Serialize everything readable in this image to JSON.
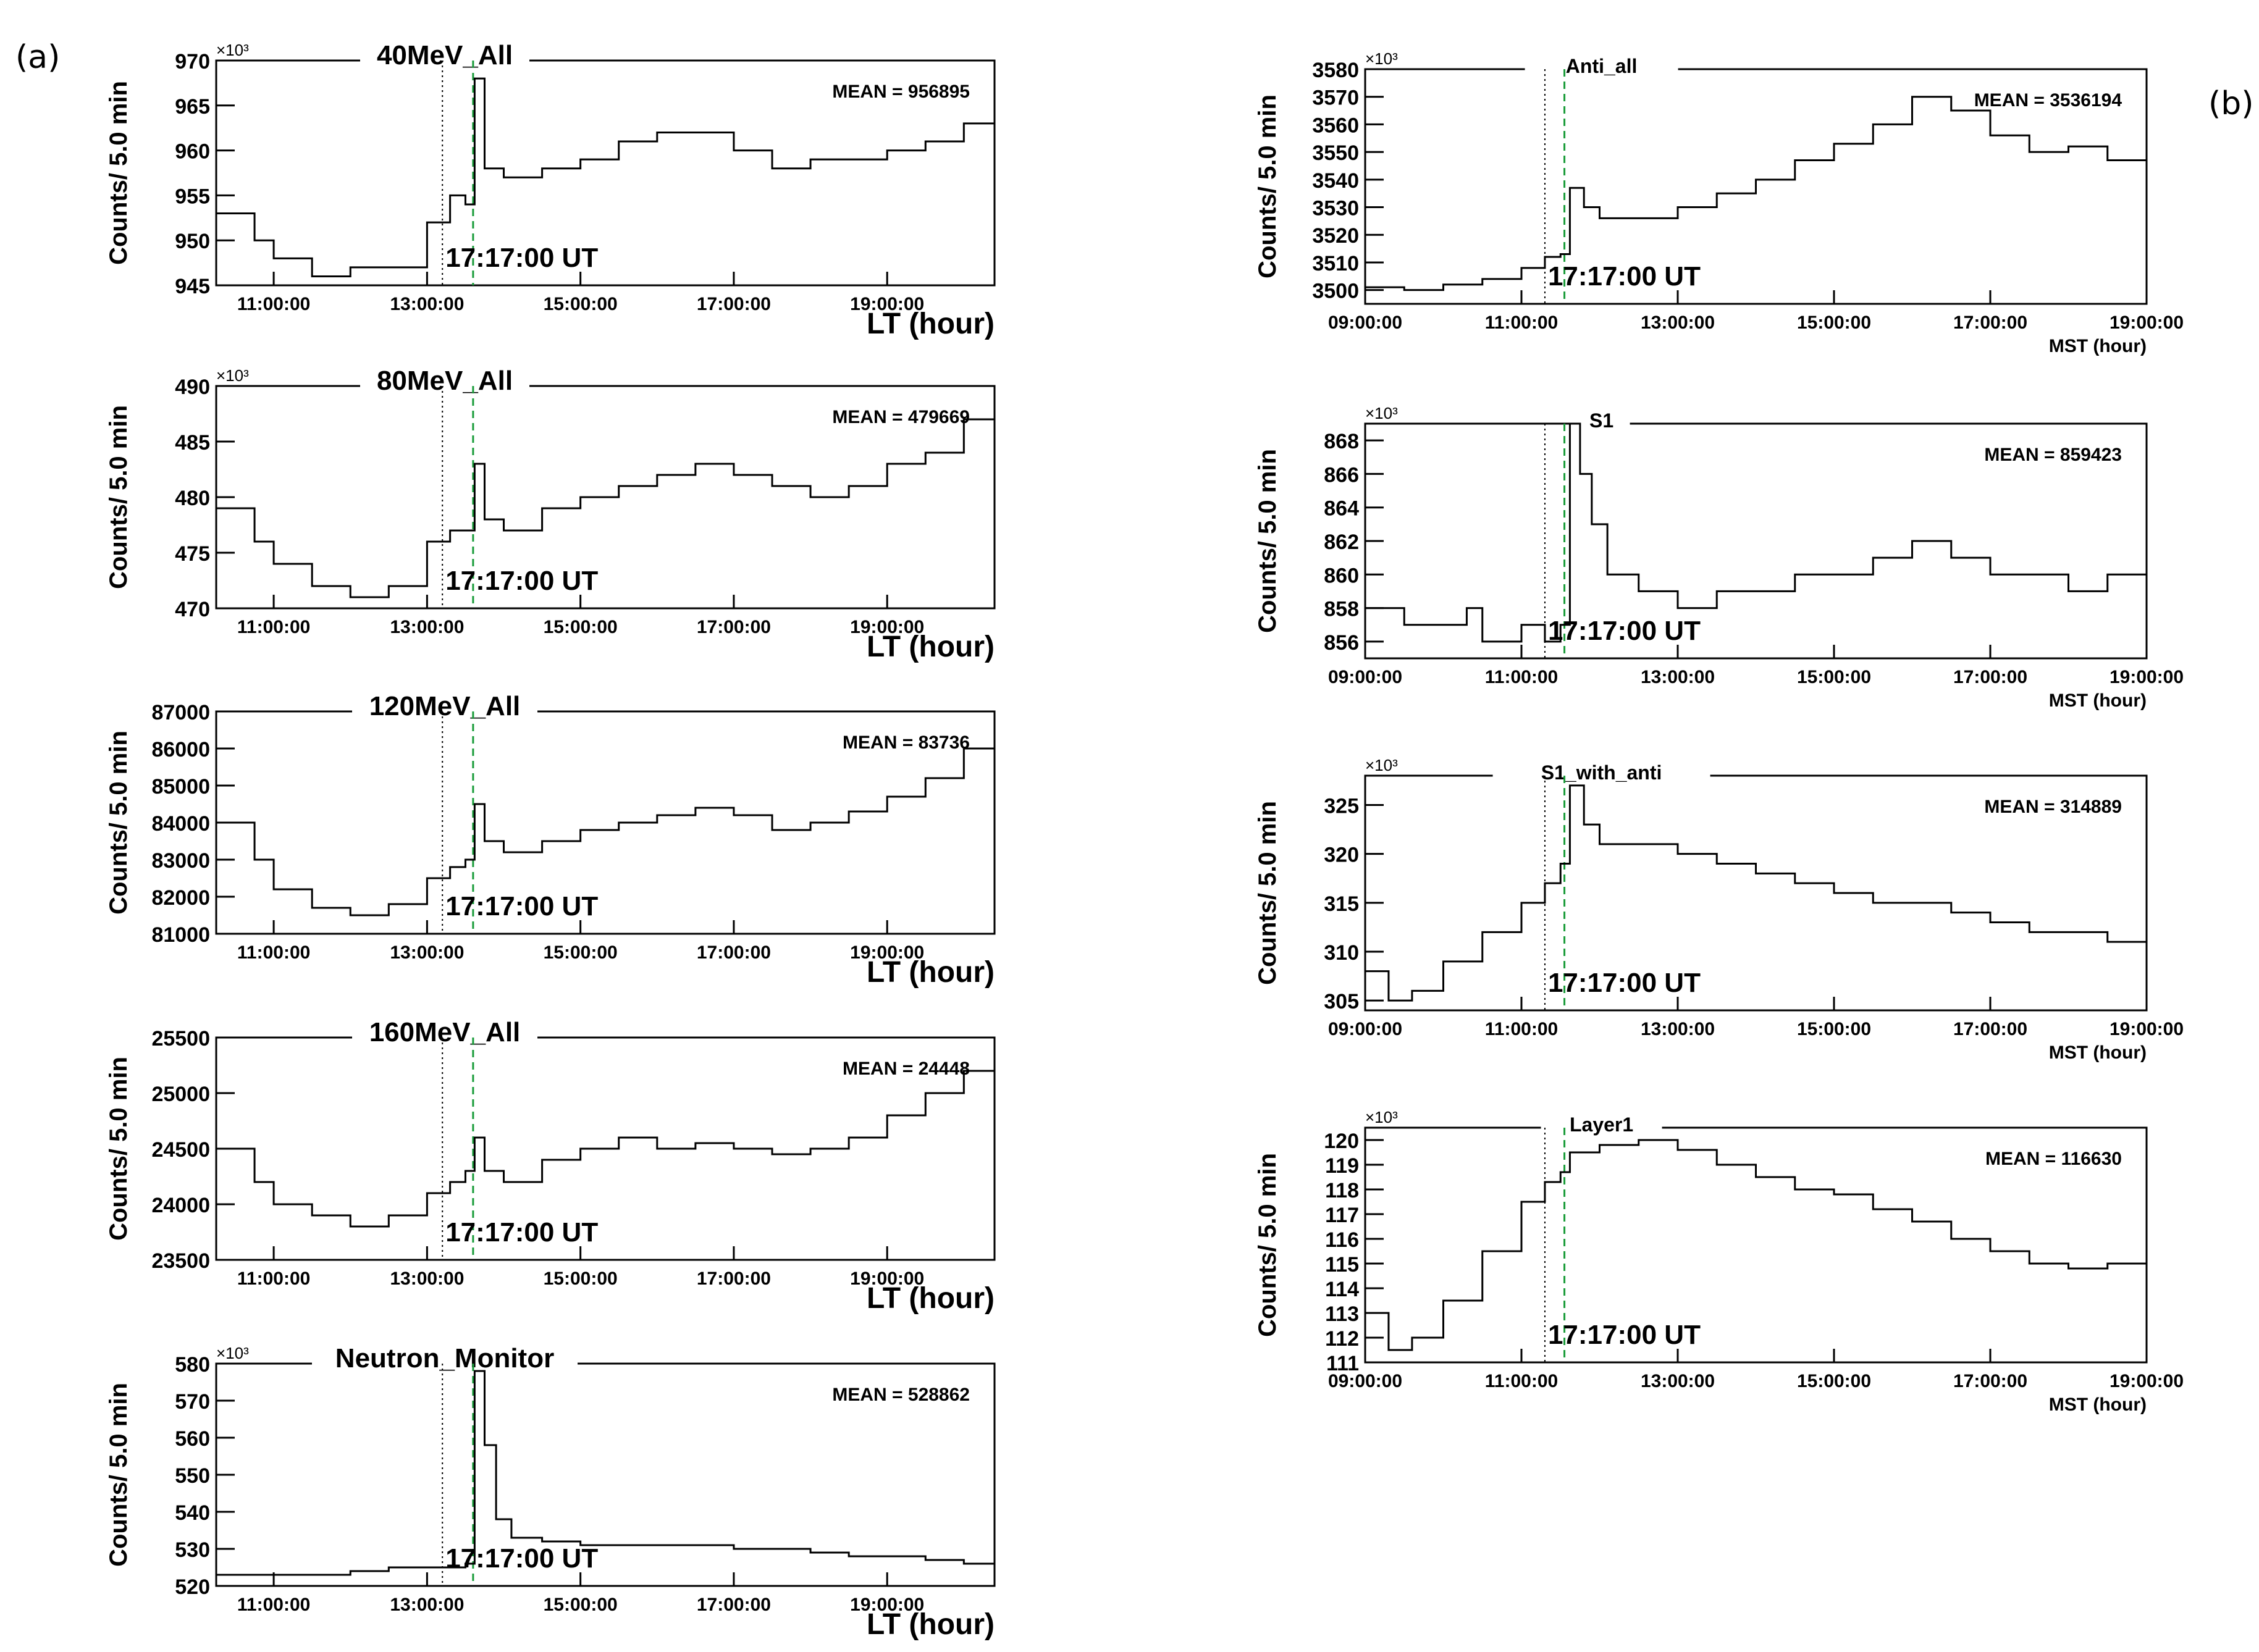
{
  "panel_labels": {
    "a": "(a)",
    "b": "(b)"
  },
  "chart_data": [
    {
      "type": "line",
      "title": "40MeV_All",
      "ylabel": "Counts/ 5.0 min",
      "xlabel": "LT (hour)",
      "y_multiplier": "×10³",
      "mean": "MEAN = 956895",
      "event_label": "17:17:00 UT",
      "x_ticks": [
        "11:00:00",
        "13:00:00",
        "15:00:00",
        "17:00:00",
        "19:00:00"
      ],
      "xlim": [
        10.25,
        20.4
      ],
      "ylim": [
        945,
        970
      ],
      "y_ticks": [
        "945",
        "950",
        "955",
        "960",
        "965",
        "970"
      ],
      "dotted_x": 13.2,
      "dashed_x": 13.6,
      "x": [
        10.25,
        10.75,
        11.0,
        11.5,
        12.0,
        12.5,
        13.0,
        13.3,
        13.5,
        13.62,
        13.75,
        14.0,
        14.5,
        15.0,
        15.5,
        16.0,
        16.5,
        17.0,
        17.5,
        18.0,
        18.5,
        19.0,
        19.5,
        20.0,
        20.4
      ],
      "y": [
        953,
        950,
        948,
        946,
        947,
        947,
        952,
        955,
        954,
        968,
        958,
        957,
        958,
        959,
        961,
        962,
        962,
        960,
        958,
        959,
        959,
        960,
        961,
        963,
        964
      ]
    },
    {
      "type": "line",
      "title": "80MeV_All",
      "ylabel": "Counts/ 5.0 min",
      "xlabel": "LT (hour)",
      "y_multiplier": "×10³",
      "mean": "MEAN = 479669",
      "event_label": "17:17:00 UT",
      "x_ticks": [
        "11:00:00",
        "13:00:00",
        "15:00:00",
        "17:00:00",
        "19:00:00"
      ],
      "xlim": [
        10.25,
        20.4
      ],
      "ylim": [
        470,
        490
      ],
      "y_ticks": [
        "470",
        "475",
        "480",
        "485",
        "490"
      ],
      "dotted_x": 13.2,
      "dashed_x": 13.6,
      "x": [
        10.25,
        10.75,
        11.0,
        11.5,
        12.0,
        12.5,
        13.0,
        13.3,
        13.5,
        13.62,
        13.75,
        14.0,
        14.5,
        15.0,
        15.5,
        16.0,
        16.5,
        17.0,
        17.5,
        18.0,
        18.5,
        19.0,
        19.5,
        20.0,
        20.4
      ],
      "y": [
        479,
        476,
        474,
        472,
        471,
        472,
        476,
        477,
        477,
        483,
        478,
        477,
        479,
        480,
        481,
        482,
        483,
        482,
        481,
        480,
        481,
        483,
        484,
        487,
        489
      ]
    },
    {
      "type": "line",
      "title": "120MeV_All",
      "ylabel": "Counts/ 5.0 min",
      "xlabel": "LT (hour)",
      "y_multiplier": "",
      "mean": "MEAN = 83736",
      "event_label": "17:17:00 UT",
      "x_ticks": [
        "11:00:00",
        "13:00:00",
        "15:00:00",
        "17:00:00",
        "19:00:00"
      ],
      "xlim": [
        10.25,
        20.4
      ],
      "ylim": [
        81000,
        87000
      ],
      "y_ticks": [
        "81000",
        "82000",
        "83000",
        "84000",
        "85000",
        "86000",
        "87000"
      ],
      "dotted_x": 13.2,
      "dashed_x": 13.6,
      "x": [
        10.25,
        10.75,
        11.0,
        11.5,
        12.0,
        12.5,
        13.0,
        13.3,
        13.5,
        13.62,
        13.75,
        14.0,
        14.5,
        15.0,
        15.5,
        16.0,
        16.5,
        17.0,
        17.5,
        18.0,
        18.5,
        19.0,
        19.5,
        20.0,
        20.4
      ],
      "y": [
        84000,
        83000,
        82200,
        81700,
        81500,
        81800,
        82500,
        82800,
        83000,
        84500,
        83500,
        83200,
        83500,
        83800,
        84000,
        84200,
        84400,
        84200,
        83800,
        84000,
        84300,
        84700,
        85200,
        86000,
        86700
      ]
    },
    {
      "type": "line",
      "title": "160MeV_All",
      "ylabel": "Counts/ 5.0 min",
      "xlabel": "LT (hour)",
      "y_multiplier": "",
      "mean": "MEAN = 24448",
      "event_label": "17:17:00 UT",
      "x_ticks": [
        "11:00:00",
        "13:00:00",
        "15:00:00",
        "17:00:00",
        "19:00:00"
      ],
      "xlim": [
        10.25,
        20.4
      ],
      "ylim": [
        23500,
        25500
      ],
      "y_ticks": [
        "23500",
        "24000",
        "24500",
        "25000",
        "25500"
      ],
      "dotted_x": 13.2,
      "dashed_x": 13.6,
      "x": [
        10.25,
        10.75,
        11.0,
        11.5,
        12.0,
        12.5,
        13.0,
        13.3,
        13.5,
        13.62,
        13.75,
        14.0,
        14.5,
        15.0,
        15.5,
        16.0,
        16.5,
        17.0,
        17.5,
        18.0,
        18.5,
        19.0,
        19.5,
        20.0,
        20.4
      ],
      "y": [
        24500,
        24200,
        24000,
        23900,
        23800,
        23900,
        24100,
        24200,
        24300,
        24600,
        24300,
        24200,
        24400,
        24500,
        24600,
        24500,
        24550,
        24500,
        24450,
        24500,
        24600,
        24800,
        25000,
        25200,
        25300
      ]
    },
    {
      "type": "line",
      "title": "Neutron_Monitor",
      "ylabel": "Counts/ 5.0 min",
      "xlabel": "LT (hour)",
      "y_multiplier": "×10³",
      "mean": "MEAN = 528862",
      "event_label": "17:17:00 UT",
      "x_ticks": [
        "11:00:00",
        "13:00:00",
        "15:00:00",
        "17:00:00",
        "19:00:00"
      ],
      "xlim": [
        10.25,
        20.4
      ],
      "ylim": [
        520,
        580
      ],
      "y_ticks": [
        "520",
        "530",
        "540",
        "550",
        "560",
        "570",
        "580"
      ],
      "dotted_x": 13.2,
      "dashed_x": 13.6,
      "x": [
        10.25,
        10.75,
        11.0,
        11.5,
        12.0,
        12.5,
        13.0,
        13.3,
        13.5,
        13.62,
        13.75,
        13.9,
        14.1,
        14.5,
        15.0,
        15.5,
        16.0,
        16.5,
        17.0,
        17.5,
        18.0,
        18.5,
        19.0,
        19.5,
        20.0,
        20.4
      ],
      "y": [
        523,
        523,
        523,
        523,
        524,
        525,
        525,
        525,
        526,
        578,
        558,
        538,
        533,
        532,
        531,
        531,
        531,
        531,
        530,
        530,
        529,
        528,
        528,
        527,
        526,
        526
      ]
    },
    {
      "type": "line",
      "title": "Anti_all",
      "ylabel": "Counts/ 5.0 min",
      "xlabel": "MST (hour)",
      "y_multiplier": "×10³",
      "mean": "MEAN = 3536194",
      "event_label": "17:17:00 UT",
      "x_ticks": [
        "09:00:00",
        "11:00:00",
        "13:00:00",
        "15:00:00",
        "17:00:00",
        "19:00:00"
      ],
      "xlim": [
        9.0,
        19.0
      ],
      "ylim": [
        3495,
        3580
      ],
      "y_ticks": [
        "3500",
        "3510",
        "3520",
        "3530",
        "3540",
        "3550",
        "3560",
        "3570",
        "3580"
      ],
      "dotted_x": 11.3,
      "dashed_x": 11.55,
      "x": [
        9.0,
        9.5,
        10.0,
        10.5,
        11.0,
        11.3,
        11.5,
        11.62,
        11.8,
        12.0,
        12.5,
        13.0,
        13.5,
        14.0,
        14.5,
        15.0,
        15.5,
        16.0,
        16.5,
        17.0,
        17.5,
        18.0,
        18.5,
        19.0
      ],
      "y": [
        3501,
        3500,
        3502,
        3504,
        3508,
        3512,
        3513,
        3537,
        3530,
        3526,
        3526,
        3530,
        3535,
        3540,
        3547,
        3553,
        3560,
        3570,
        3565,
        3556,
        3550,
        3552,
        3547,
        3539
      ]
    },
    {
      "type": "line",
      "title": "S1",
      "ylabel": "Counts/ 5.0 min",
      "xlabel": "MST (hour)",
      "y_multiplier": "×10³",
      "mean": "MEAN = 859423",
      "event_label": "17:17:00 UT",
      "x_ticks": [
        "09:00:00",
        "11:00:00",
        "13:00:00",
        "15:00:00",
        "17:00:00",
        "19:00:00"
      ],
      "xlim": [
        9.0,
        19.0
      ],
      "ylim": [
        855,
        869
      ],
      "y_ticks": [
        "856",
        "858",
        "860",
        "862",
        "864",
        "866",
        "868"
      ],
      "dotted_x": 11.3,
      "dashed_x": 11.55,
      "x": [
        9.0,
        9.5,
        10.0,
        10.3,
        10.5,
        11.0,
        11.3,
        11.5,
        11.62,
        11.75,
        11.9,
        12.1,
        12.5,
        13.0,
        13.5,
        14.0,
        14.5,
        15.0,
        15.5,
        16.0,
        16.5,
        17.0,
        17.5,
        18.0,
        18.5,
        19.0
      ],
      "y": [
        858,
        857,
        857,
        858,
        856,
        857,
        856,
        857,
        869,
        866,
        863,
        860,
        859,
        858,
        859,
        859,
        860,
        860,
        861,
        862,
        861,
        860,
        860,
        859,
        860,
        858
      ]
    },
    {
      "type": "line",
      "title": "S1_with_anti",
      "ylabel": "Counts/ 5.0 min",
      "xlabel": "MST (hour)",
      "y_multiplier": "×10³",
      "mean": "MEAN = 314889",
      "event_label": "17:17:00 UT",
      "x_ticks": [
        "09:00:00",
        "11:00:00",
        "13:00:00",
        "15:00:00",
        "17:00:00",
        "19:00:00"
      ],
      "xlim": [
        9.0,
        19.0
      ],
      "ylim": [
        304,
        328
      ],
      "y_ticks": [
        "305",
        "310",
        "315",
        "320",
        "325"
      ],
      "dotted_x": 11.3,
      "dashed_x": 11.55,
      "x": [
        9.0,
        9.3,
        9.6,
        10.0,
        10.5,
        11.0,
        11.3,
        11.5,
        11.62,
        11.8,
        12.0,
        12.5,
        13.0,
        13.5,
        14.0,
        14.5,
        15.0,
        15.5,
        16.0,
        16.5,
        17.0,
        17.5,
        18.0,
        18.5,
        19.0
      ],
      "y": [
        308,
        305,
        306,
        309,
        312,
        315,
        317,
        319,
        327,
        323,
        321,
        321,
        320,
        319,
        318,
        317,
        316,
        315,
        315,
        314,
        313,
        312,
        312,
        311,
        309
      ]
    },
    {
      "type": "line",
      "title": "Layer1",
      "ylabel": "Counts/ 5.0 min",
      "xlabel": "MST (hour)",
      "y_multiplier": "×10³",
      "mean": "MEAN = 116630",
      "event_label": "17:17:00 UT",
      "x_ticks": [
        "09:00:00",
        "11:00:00",
        "13:00:00",
        "15:00:00",
        "17:00:00",
        "19:00:00"
      ],
      "xlim": [
        9.0,
        19.0
      ],
      "ylim": [
        111,
        120.5
      ],
      "y_ticks": [
        "111",
        "112",
        "113",
        "114",
        "115",
        "116",
        "117",
        "118",
        "119",
        "120"
      ],
      "dotted_x": 11.3,
      "dashed_x": 11.55,
      "x": [
        9.0,
        9.3,
        9.6,
        10.0,
        10.5,
        11.0,
        11.3,
        11.5,
        11.62,
        12.0,
        12.5,
        13.0,
        13.5,
        14.0,
        14.5,
        15.0,
        15.5,
        16.0,
        16.5,
        17.0,
        17.5,
        18.0,
        18.5,
        19.0
      ],
      "y": [
        113,
        111.5,
        112,
        113.5,
        115.5,
        117.5,
        118.3,
        118.7,
        119.5,
        119.8,
        120,
        119.6,
        119,
        118.5,
        118,
        117.8,
        117.2,
        116.7,
        116,
        115.5,
        115,
        114.8,
        115,
        114.3
      ]
    }
  ]
}
